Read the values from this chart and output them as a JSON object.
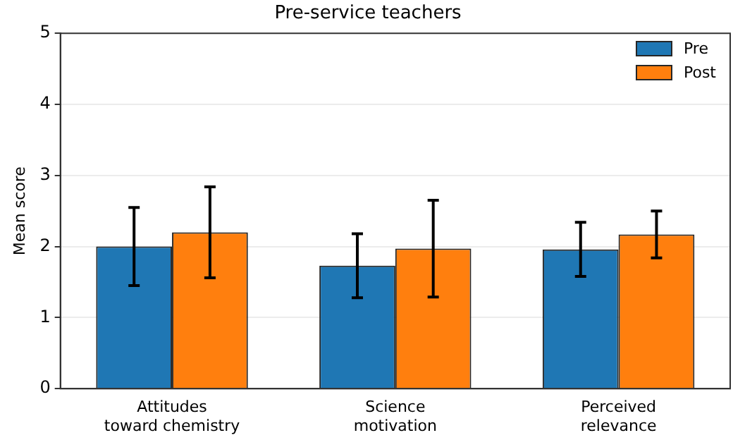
{
  "chart_data": {
    "type": "bar",
    "title": "Pre-service teachers",
    "ylabel": "Mean score",
    "categories": [
      "Attitudes\ntoward chemistry",
      "Science\nmotivation",
      "Perceived\nrelevance"
    ],
    "series": [
      {
        "name": "Pre",
        "color": "#1f77b4",
        "values": [
          2.0,
          1.73,
          1.96
        ],
        "errors": [
          0.55,
          0.45,
          0.38
        ]
      },
      {
        "name": "Post",
        "color": "#ff7f0e",
        "values": [
          2.2,
          1.97,
          2.17
        ],
        "errors": [
          0.64,
          0.68,
          0.33
        ]
      }
    ],
    "ylim": [
      0,
      5
    ],
    "yticks": [
      0,
      1,
      2,
      3,
      4,
      5
    ],
    "grid": "y",
    "legend": "top right"
  }
}
